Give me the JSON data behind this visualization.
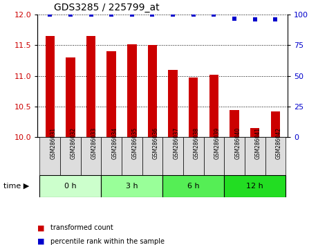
{
  "title": "GDS3285 / 225799_at",
  "samples": [
    "GSM286031",
    "GSM286032",
    "GSM286033",
    "GSM286034",
    "GSM286035",
    "GSM286036",
    "GSM286037",
    "GSM286038",
    "GSM286039",
    "GSM286040",
    "GSM286041",
    "GSM286042"
  ],
  "bar_values": [
    11.65,
    11.3,
    11.65,
    11.4,
    11.52,
    11.5,
    11.1,
    10.98,
    11.02,
    10.44,
    10.15,
    10.42
  ],
  "percentile_values": [
    100,
    100,
    100,
    100,
    100,
    100,
    100,
    100,
    100,
    97,
    96,
    96
  ],
  "bar_color": "#cc0000",
  "percentile_color": "#0000cc",
  "ylim_left": [
    10,
    12
  ],
  "ylim_right": [
    0,
    100
  ],
  "yticks_left": [
    10,
    10.5,
    11,
    11.5,
    12
  ],
  "yticks_right": [
    0,
    25,
    50,
    75,
    100
  ],
  "groups": [
    {
      "label": "0 h",
      "start": 0,
      "end": 3,
      "color": "#ccffcc"
    },
    {
      "label": "3 h",
      "start": 3,
      "end": 6,
      "color": "#99ff99"
    },
    {
      "label": "6 h",
      "start": 6,
      "end": 9,
      "color": "#55ee55"
    },
    {
      "label": "12 h",
      "start": 9,
      "end": 12,
      "color": "#22dd22"
    }
  ],
  "bar_width": 0.45,
  "grid_color": "#000000",
  "background_color": "#ffffff",
  "tick_label_color_left": "#cc0000",
  "tick_label_color_right": "#0000cc",
  "sample_box_color": "#dddddd",
  "legend_items": [
    {
      "color": "#cc0000",
      "label": "transformed count"
    },
    {
      "color": "#0000cc",
      "label": "percentile rank within the sample"
    }
  ]
}
